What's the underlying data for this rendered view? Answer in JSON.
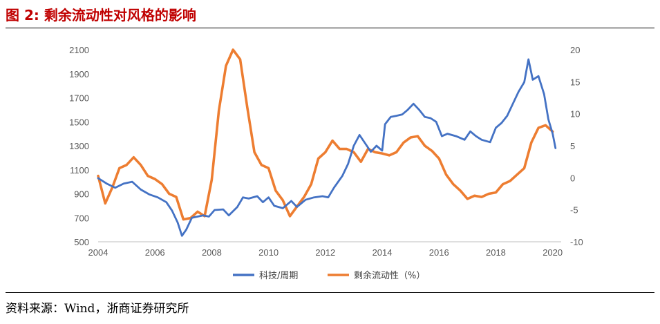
{
  "header": {
    "title": "图 2: 剩余流动性对风格的影响"
  },
  "footer": {
    "source": "资料来源：Wind，浙商证券研究所"
  },
  "colors": {
    "tech_ratio": "#4472c4",
    "liquidity": "#ed7d31",
    "title": "#c00000"
  },
  "chart_data": {
    "type": "line",
    "title": "",
    "xlabel": "",
    "ylabel": "",
    "xlim": [
      2004,
      2020.3
    ],
    "ylim_left": [
      500,
      2100
    ],
    "ylim_right": [
      -10,
      20
    ],
    "x_ticks": [
      "2004",
      "2006",
      "2008",
      "2010",
      "2012",
      "2014",
      "2016",
      "2018",
      "2020"
    ],
    "y_left_ticks": [
      "2100",
      "1900",
      "1700",
      "1500",
      "1300",
      "1100",
      "900",
      "700",
      "500"
    ],
    "y_right_ticks": [
      "20",
      "15",
      "10",
      "5",
      "0",
      "-5",
      "-10"
    ],
    "legend": [
      "科技/周期",
      "剩余流动性（%）"
    ],
    "series": [
      {
        "name": "科技/周期",
        "axis": "left",
        "x": [
          2004.0,
          2004.3,
          2004.6,
          2004.9,
          2005.2,
          2005.5,
          2005.8,
          2006.1,
          2006.4,
          2006.6,
          2006.8,
          2006.95,
          2007.1,
          2007.3,
          2007.5,
          2007.7,
          2007.9,
          2008.1,
          2008.4,
          2008.6,
          2008.9,
          2009.1,
          2009.3,
          2009.6,
          2009.8,
          2010.0,
          2010.2,
          2010.5,
          2010.8,
          2011.0,
          2011.3,
          2011.6,
          2011.9,
          2012.1,
          2012.3,
          2012.6,
          2012.8,
          2013.0,
          2013.2,
          2013.4,
          2013.6,
          2013.8,
          2014.0,
          2014.1,
          2014.3,
          2014.5,
          2014.7,
          2014.9,
          2015.1,
          2015.3,
          2015.5,
          2015.7,
          2015.9,
          2016.1,
          2016.3,
          2016.6,
          2016.9,
          2017.1,
          2017.3,
          2017.5,
          2017.8,
          2018.0,
          2018.2,
          2018.4,
          2018.6,
          2018.8,
          2019.0,
          2019.15,
          2019.3,
          2019.5,
          2019.7,
          2019.85,
          2020.0,
          2020.1
        ],
        "values": [
          1030,
          985,
          950,
          985,
          1000,
          935,
          895,
          870,
          830,
          760,
          660,
          550,
          600,
          700,
          710,
          720,
          710,
          765,
          770,
          720,
          790,
          870,
          860,
          880,
          830,
          870,
          800,
          780,
          840,
          790,
          850,
          870,
          880,
          870,
          950,
          1050,
          1150,
          1300,
          1390,
          1320,
          1250,
          1300,
          1260,
          1480,
          1540,
          1550,
          1560,
          1600,
          1650,
          1600,
          1540,
          1530,
          1500,
          1380,
          1400,
          1380,
          1350,
          1420,
          1380,
          1350,
          1330,
          1450,
          1490,
          1550,
          1650,
          1750,
          1830,
          2020,
          1850,
          1880,
          1730,
          1520,
          1400,
          1280
        ]
      },
      {
        "name": "剩余流动性（%）",
        "axis": "right",
        "x": [
          2004.0,
          2004.25,
          2004.5,
          2004.75,
          2005.0,
          2005.25,
          2005.5,
          2005.75,
          2006.0,
          2006.25,
          2006.5,
          2006.75,
          2007.0,
          2007.25,
          2007.5,
          2007.75,
          2008.0,
          2008.25,
          2008.5,
          2008.75,
          2009.0,
          2009.25,
          2009.5,
          2009.75,
          2010.0,
          2010.25,
          2010.5,
          2010.75,
          2011.0,
          2011.25,
          2011.5,
          2011.75,
          2012.0,
          2012.25,
          2012.5,
          2012.75,
          2013.0,
          2013.25,
          2013.5,
          2013.75,
          2014.0,
          2014.25,
          2014.5,
          2014.75,
          2015.0,
          2015.25,
          2015.5,
          2015.75,
          2016.0,
          2016.25,
          2016.5,
          2016.75,
          2017.0,
          2017.25,
          2017.5,
          2017.75,
          2018.0,
          2018.25,
          2018.5,
          2018.75,
          2019.0,
          2019.25,
          2019.5,
          2019.75,
          2020.0
        ],
        "values": [
          0.3,
          -4.0,
          -1.5,
          1.5,
          2.0,
          3.2,
          2.0,
          0.3,
          -0.2,
          -1.0,
          -2.5,
          -3.0,
          -6.5,
          -6.3,
          -5.3,
          -6.0,
          -0.3,
          10.5,
          17.5,
          20.0,
          18.5,
          11.0,
          4.0,
          2.0,
          1.5,
          -2.0,
          -3.5,
          -6.0,
          -4.5,
          -3.0,
          -1.0,
          3.0,
          4.0,
          5.8,
          4.5,
          4.5,
          4.0,
          2.5,
          4.5,
          4.0,
          3.8,
          3.5,
          4.0,
          5.5,
          6.3,
          6.5,
          5.0,
          4.2,
          3.0,
          0.5,
          -1.0,
          -2.0,
          -3.3,
          -2.8,
          -3.0,
          -2.5,
          -2.3,
          -1.0,
          -0.5,
          0.5,
          1.5,
          5.5,
          7.8,
          8.2,
          7.2
        ]
      }
    ]
  }
}
